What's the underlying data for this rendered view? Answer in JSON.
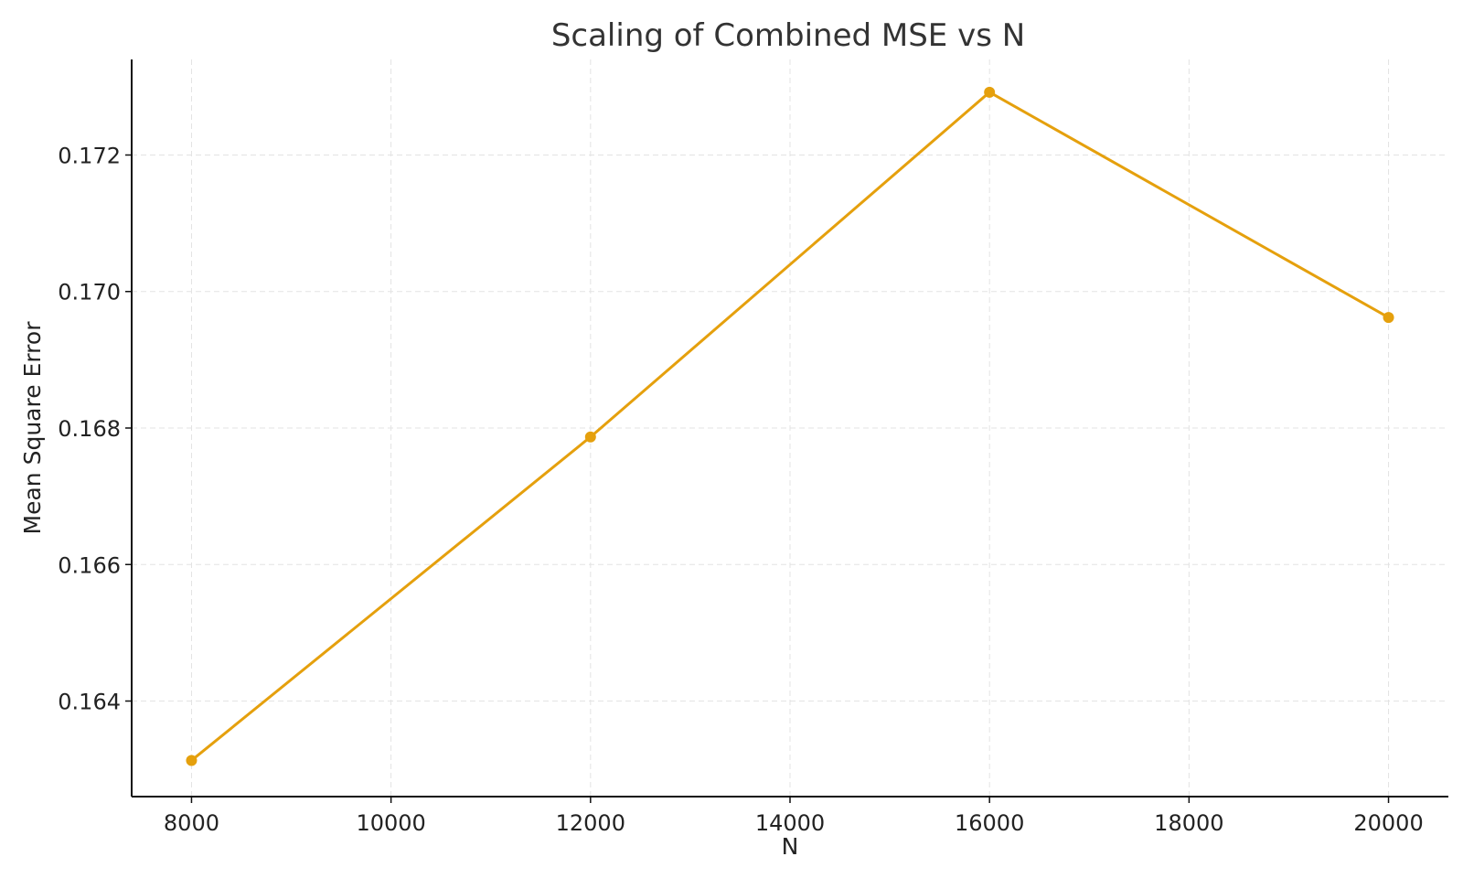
{
  "chart_data": {
    "type": "line",
    "title": "Scaling of Combined MSE vs N",
    "xlabel": "N",
    "ylabel": "Mean Square Error",
    "x": [
      8000,
      12000,
      16000,
      20000
    ],
    "series": [
      {
        "values": [
          0.16313,
          0.16787,
          0.17292,
          0.16962
        ],
        "color": "#E5A00D",
        "marker": "circle"
      }
    ],
    "xlim": [
      7400,
      20600
    ],
    "ylim": [
      0.1626,
      0.1734
    ],
    "x_ticks": [
      8000,
      10000,
      12000,
      14000,
      16000,
      18000,
      20000
    ],
    "x_tick_labels": [
      "8000",
      "10000",
      "12000",
      "14000",
      "16000",
      "18000",
      "20000"
    ],
    "y_ticks": [
      0.164,
      0.166,
      0.168,
      0.17,
      0.172
    ],
    "y_tick_labels": [
      "0.164",
      "0.166",
      "0.168",
      "0.170",
      "0.172"
    ],
    "grid": true,
    "legend": "none"
  }
}
